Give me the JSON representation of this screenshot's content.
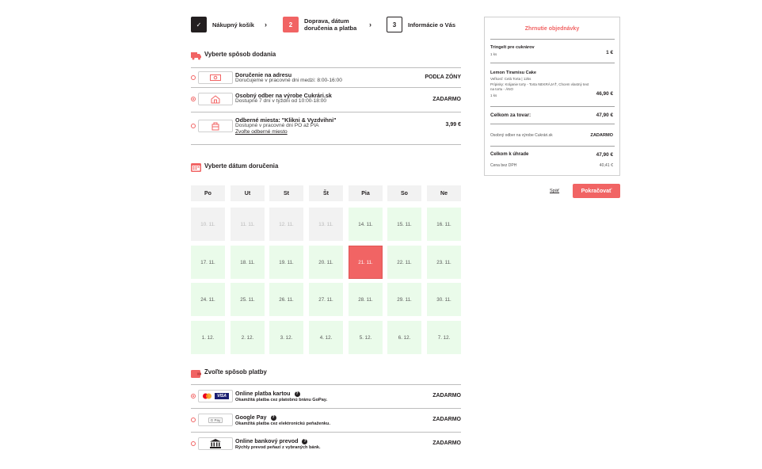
{
  "steps": [
    {
      "number": "✓",
      "label": "Nákupný košík",
      "state": "done"
    },
    {
      "number": "2",
      "label_line1": "Doprava, dátum",
      "label_line2": "doručenia a platba",
      "state": "active"
    },
    {
      "number": "3",
      "label": "Informácie o Vás",
      "state": "todo"
    }
  ],
  "step_arrow": "›",
  "delivery": {
    "heading": "Vyberte spôsob dodania",
    "options": [
      {
        "title": "Doručenie na adresu",
        "subtitle": "Doručujeme v pracovné dni medzi: 8:00-16:00",
        "price": "PODĽA ZÓNY",
        "icon": "money-icon",
        "selected": false
      },
      {
        "title": "Osobný odber na výrobe Cukrári.sk",
        "subtitle": "Dostupné 7 dní v týždni od 10:00-18:00",
        "price": "ZADARMO",
        "icon": "shop-icon",
        "selected": true
      },
      {
        "title": "Odberné miesta: \"Klikni & Vyzdvihni\"",
        "subtitle": "Dostupné v pracovné dni PO až PIA",
        "link": "Zvoľte odberné miesto",
        "price": "3,99 €",
        "icon": "pickup-point-icon",
        "selected": false
      }
    ]
  },
  "date": {
    "heading": "Vyberte dátum doručenia",
    "days": [
      "Po",
      "Ut",
      "St",
      "Št",
      "Pia",
      "So",
      "Ne"
    ],
    "weeks": [
      [
        {
          "d": "10. 11.",
          "s": "past"
        },
        {
          "d": "11. 11.",
          "s": "past"
        },
        {
          "d": "12. 11.",
          "s": "past"
        },
        {
          "d": "13. 11.",
          "s": "past"
        },
        {
          "d": "14. 11.",
          "s": "avail"
        },
        {
          "d": "15. 11.",
          "s": "avail"
        },
        {
          "d": "16. 11.",
          "s": "avail"
        }
      ],
      [
        {
          "d": "17. 11.",
          "s": "avail"
        },
        {
          "d": "18. 11.",
          "s": "avail"
        },
        {
          "d": "19. 11.",
          "s": "avail"
        },
        {
          "d": "20. 11.",
          "s": "avail"
        },
        {
          "d": "21. 11.",
          "s": "sel"
        },
        {
          "d": "22. 11.",
          "s": "avail"
        },
        {
          "d": "23. 11.",
          "s": "avail"
        }
      ],
      [
        {
          "d": "24. 11.",
          "s": "avail"
        },
        {
          "d": "25. 11.",
          "s": "avail"
        },
        {
          "d": "26. 11.",
          "s": "avail"
        },
        {
          "d": "27. 11.",
          "s": "avail"
        },
        {
          "d": "28. 11.",
          "s": "avail"
        },
        {
          "d": "29. 11.",
          "s": "avail"
        },
        {
          "d": "30. 11.",
          "s": "avail"
        }
      ],
      [
        {
          "d": "1. 12.",
          "s": "avail"
        },
        {
          "d": "2. 12.",
          "s": "avail"
        },
        {
          "d": "3. 12.",
          "s": "avail"
        },
        {
          "d": "4. 12.",
          "s": "avail"
        },
        {
          "d": "5. 12.",
          "s": "avail"
        },
        {
          "d": "6. 12.",
          "s": "avail"
        },
        {
          "d": "7. 12.",
          "s": "avail"
        }
      ]
    ]
  },
  "payment": {
    "heading": "Zvoľte spôsob platby",
    "options": [
      {
        "title": "Online platba kartou",
        "subtitle": "Okamžitá platba cez platobnú bránu GoPay.",
        "price": "ZADARMO",
        "icon": "card-icon",
        "icon_text": "VISA",
        "selected": true
      },
      {
        "title": "Google Pay",
        "subtitle": "Okamžitá platba cez elektronickú peňaženku.",
        "price": "ZADARMO",
        "icon": "google-pay-icon",
        "icon_text": "G Pay",
        "selected": false
      },
      {
        "title": "Online bankový prevod",
        "subtitle": "Rýchly prevod peňazí z vybraných bánk.",
        "price": "ZADARMO",
        "icon": "bank-icon",
        "selected": false
      }
    ]
  },
  "summary": {
    "title": "Zhrnutie objednávky",
    "item1": {
      "name": "Tringelt pre cukrárov",
      "qty": "1 ks",
      "price": "1 €"
    },
    "item2": {
      "name": "Lemon Tiramisu Cake",
      "detail1": "Veľkosť: Celá Torta | 12ks",
      "detail2": "Prípisky: Krájanie torty - Torta NEKRÁJAŤ, Chcem vlastný text",
      "detail3": "na tortu - ÁNO",
      "qty": "1 ks",
      "price": "46,90 €"
    },
    "goods_label": "Celkom za tovar:",
    "goods_value": "47,90 €",
    "shipping_label": "Osobný odber na výrobe Cukrári.sk",
    "shipping_value": "ZADARMO",
    "total_label": "Celkom k úhrade",
    "total_value": "47,90 €",
    "novat_label": "Cena bez DPH",
    "novat_value": "40,41 €"
  },
  "actions": {
    "back": "Späť",
    "continue": "Pokračovať"
  },
  "colors": {
    "accent": "#f16464",
    "available": "#eafbea",
    "past": "#f2f2f2",
    "dark": "#231f20"
  }
}
